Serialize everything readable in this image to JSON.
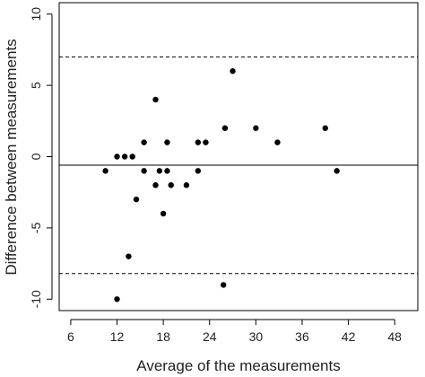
{
  "chart_data": {
    "type": "scatter",
    "xlabel": "Average of the measurements",
    "ylabel": "Difference between measurements",
    "xlim": [
      4.5,
      51
    ],
    "ylim": [
      -10.8,
      10.8
    ],
    "xticks": [
      6,
      12,
      18,
      24,
      30,
      36,
      42,
      48
    ],
    "yticks": [
      -10,
      -5,
      0,
      5,
      10
    ],
    "xtick_labels": [
      "6",
      "12",
      "18",
      "24",
      "30",
      "36",
      "42",
      "48"
    ],
    "ytick_labels": [
      "-10",
      "-5",
      "0",
      "5",
      "10"
    ],
    "mean_line": -0.6,
    "upper_limit": 7.0,
    "lower_limit": -8.2,
    "point_color": "#000000",
    "points": [
      {
        "x": 10.5,
        "y": -1
      },
      {
        "x": 12.0,
        "y": 0
      },
      {
        "x": 12.0,
        "y": -10
      },
      {
        "x": 13.0,
        "y": 0
      },
      {
        "x": 13.5,
        "y": -7
      },
      {
        "x": 14.0,
        "y": 0
      },
      {
        "x": 14.5,
        "y": -3
      },
      {
        "x": 15.5,
        "y": -1
      },
      {
        "x": 15.5,
        "y": 1
      },
      {
        "x": 17.0,
        "y": 4
      },
      {
        "x": 17.0,
        "y": -2
      },
      {
        "x": 17.5,
        "y": -1
      },
      {
        "x": 18.0,
        "y": -4
      },
      {
        "x": 18.5,
        "y": 1
      },
      {
        "x": 18.5,
        "y": -1
      },
      {
        "x": 19.0,
        "y": -2
      },
      {
        "x": 21.0,
        "y": -2
      },
      {
        "x": 22.5,
        "y": -1
      },
      {
        "x": 22.5,
        "y": 1
      },
      {
        "x": 23.5,
        "y": 1
      },
      {
        "x": 25.8,
        "y": -9
      },
      {
        "x": 26.0,
        "y": 2
      },
      {
        "x": 27.0,
        "y": 6
      },
      {
        "x": 30.0,
        "y": 2
      },
      {
        "x": 32.8,
        "y": 1
      },
      {
        "x": 39.0,
        "y": 2
      },
      {
        "x": 40.5,
        "y": -1
      }
    ]
  }
}
